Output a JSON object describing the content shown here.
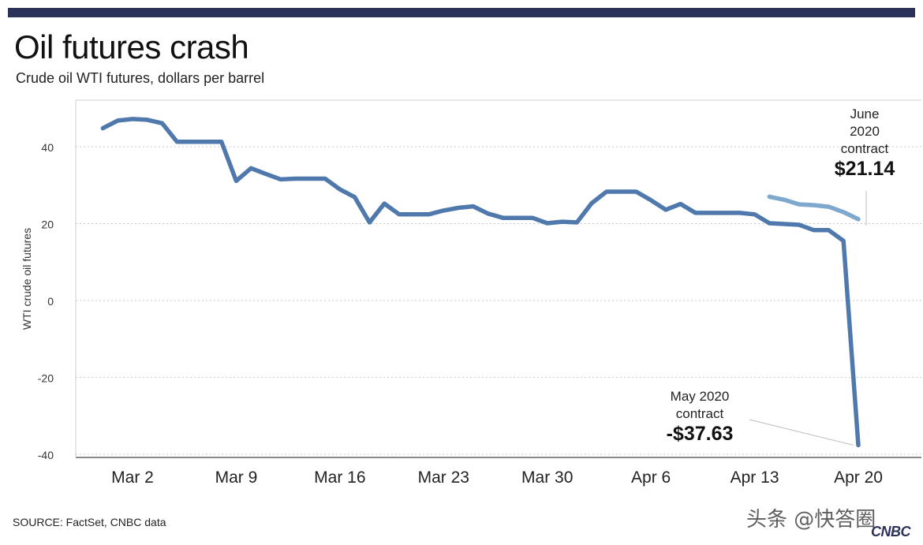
{
  "header": {
    "title": "Oil futures crash",
    "subtitle": "Crude oil WTI futures, dollars per barrel"
  },
  "footer": {
    "source": "SOURCE: FactSet, CNBC data",
    "watermark": "头条 @快答圈",
    "logo_text": "CNBC"
  },
  "colors": {
    "may_line": "#4f79ad",
    "june_line": "#7fa8cf",
    "top_bar": "#2b3158"
  },
  "chart_data": {
    "type": "line",
    "title": "",
    "xlabel": "",
    "ylabel": "WTI crude oil futures",
    "ylim": [
      -42,
      50
    ],
    "yticks": [
      40,
      20,
      0,
      -20,
      -40
    ],
    "grid": "horizontal dotted",
    "x_ticks": [
      {
        "label": "Mar 2",
        "day": 2
      },
      {
        "label": "Mar 9",
        "day": 9
      },
      {
        "label": "Mar 16",
        "day": 16
      },
      {
        "label": "Mar 23",
        "day": 23
      },
      {
        "label": "Mar 30",
        "day": 30
      },
      {
        "label": "Apr 6",
        "day": 37
      },
      {
        "label": "Apr 13",
        "day": 44
      },
      {
        "label": "Apr 20",
        "day": 51
      }
    ],
    "series": [
      {
        "name": "May 2020 contract",
        "points": [
          {
            "x": "Feb 29",
            "y": 44.8
          },
          {
            "x": "Mar 1",
            "y": 46.8
          },
          {
            "x": "Mar 2",
            "y": 47.2
          },
          {
            "x": "Mar 3",
            "y": 47.0
          },
          {
            "x": "Mar 4",
            "y": 46.1
          },
          {
            "x": "Mar 5",
            "y": 41.3
          },
          {
            "x": "Mar 7",
            "y": 41.3
          },
          {
            "x": "Mar 8",
            "y": 41.3
          },
          {
            "x": "Mar 9",
            "y": 31.1
          },
          {
            "x": "Mar 10",
            "y": 34.4
          },
          {
            "x": "Mar 11",
            "y": 32.9
          },
          {
            "x": "Mar 12",
            "y": 31.5
          },
          {
            "x": "Mar 13",
            "y": 31.7
          },
          {
            "x": "Mar 15",
            "y": 31.7
          },
          {
            "x": "Mar 16",
            "y": 28.9
          },
          {
            "x": "Mar 17",
            "y": 26.9
          },
          {
            "x": "Mar 18",
            "y": 20.3
          },
          {
            "x": "Mar 19",
            "y": 25.2
          },
          {
            "x": "Mar 20",
            "y": 22.4
          },
          {
            "x": "Mar 22",
            "y": 22.4
          },
          {
            "x": "Mar 23",
            "y": 23.4
          },
          {
            "x": "Mar 24",
            "y": 24.1
          },
          {
            "x": "Mar 25",
            "y": 24.5
          },
          {
            "x": "Mar 26",
            "y": 22.6
          },
          {
            "x": "Mar 27",
            "y": 21.5
          },
          {
            "x": "Mar 29",
            "y": 21.5
          },
          {
            "x": "Mar 30",
            "y": 20.1
          },
          {
            "x": "Mar 31",
            "y": 20.5
          },
          {
            "x": "Apr 1",
            "y": 20.3
          },
          {
            "x": "Apr 2",
            "y": 25.3
          },
          {
            "x": "Apr 3",
            "y": 28.3
          },
          {
            "x": "Apr 5",
            "y": 28.3
          },
          {
            "x": "Apr 6",
            "y": 26.1
          },
          {
            "x": "Apr 7",
            "y": 23.6
          },
          {
            "x": "Apr 8",
            "y": 25.1
          },
          {
            "x": "Apr 9",
            "y": 22.8
          },
          {
            "x": "Apr 10",
            "y": 22.8
          },
          {
            "x": "Apr 12",
            "y": 22.8
          },
          {
            "x": "Apr 13",
            "y": 22.4
          },
          {
            "x": "Apr 14",
            "y": 20.1
          },
          {
            "x": "Apr 15",
            "y": 19.9
          },
          {
            "x": "Apr 16",
            "y": 19.7
          },
          {
            "x": "Apr 17",
            "y": 18.3
          },
          {
            "x": "Apr 18",
            "y": 18.3
          },
          {
            "x": "Apr 19",
            "y": 15.5
          },
          {
            "x": "Apr 20",
            "y": -37.63
          }
        ]
      },
      {
        "name": "June 2020 contract",
        "points": [
          {
            "x": "Apr 14",
            "y": 27.0
          },
          {
            "x": "Apr 15",
            "y": 26.2
          },
          {
            "x": "Apr 16",
            "y": 25.0
          },
          {
            "x": "Apr 17",
            "y": 24.8
          },
          {
            "x": "Apr 18",
            "y": 24.4
          },
          {
            "x": "Apr 19",
            "y": 23.0
          },
          {
            "x": "Apr 20",
            "y": 21.14
          }
        ]
      }
    ],
    "annotations": [
      {
        "series": "June 2020 contract",
        "lines": [
          "June",
          "2020",
          "contract"
        ],
        "value": "$21.14"
      },
      {
        "series": "May 2020 contract",
        "lines": [
          "May 2020",
          "contract"
        ],
        "value": "-$37.63"
      }
    ]
  }
}
